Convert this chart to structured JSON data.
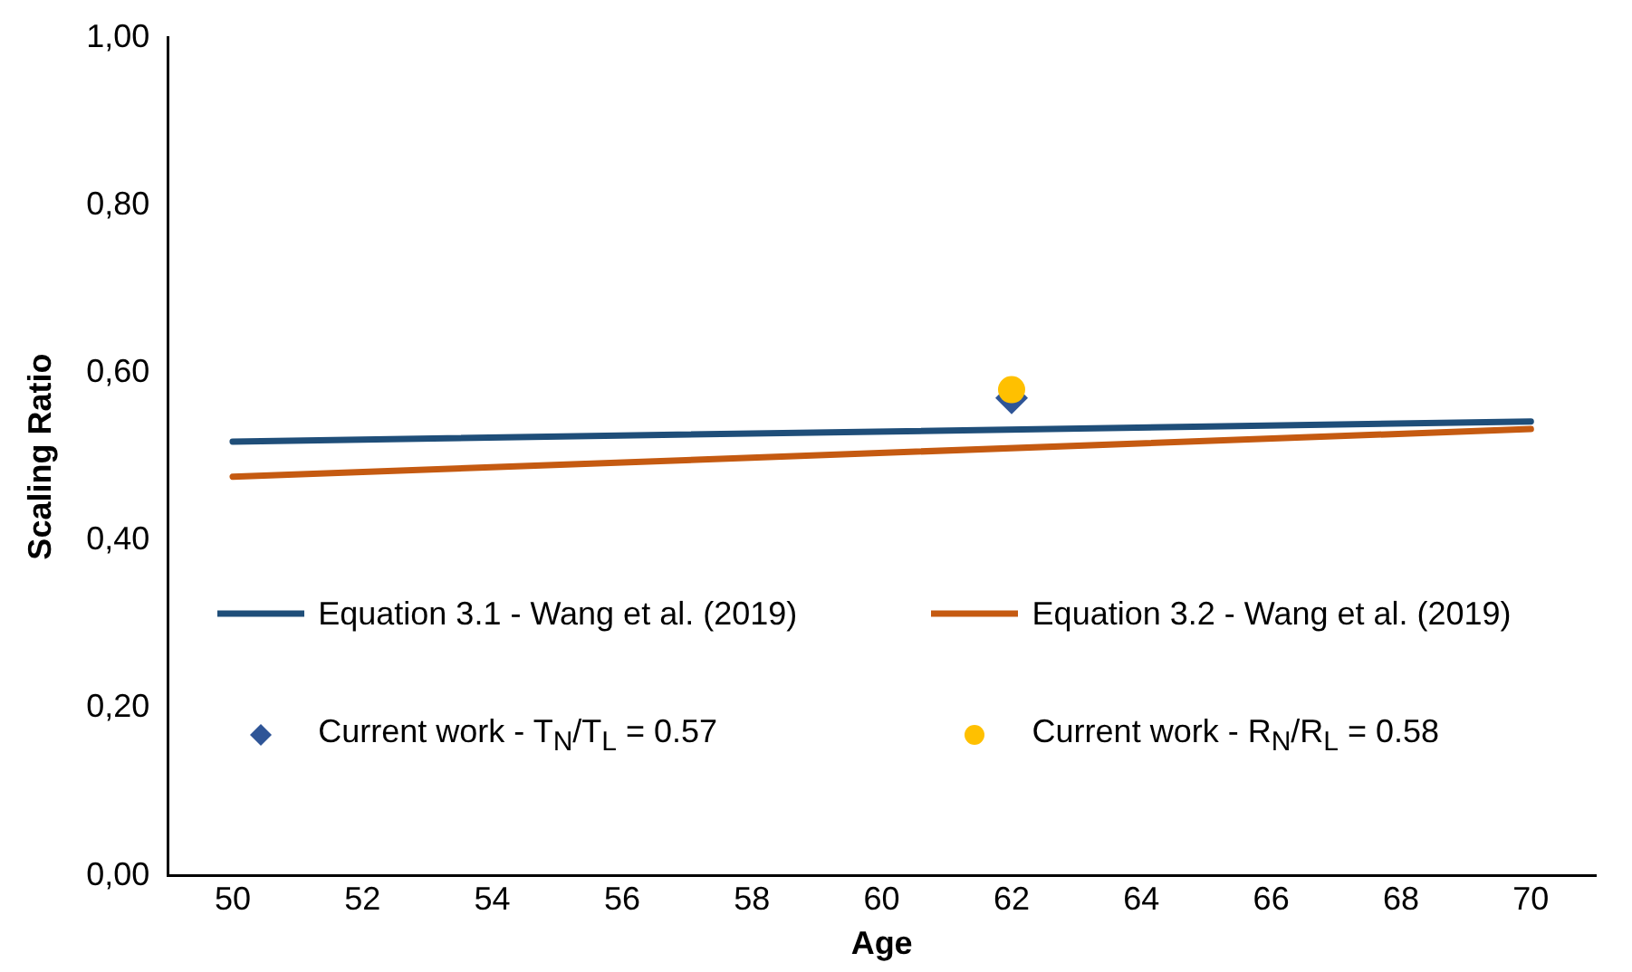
{
  "chart_data": {
    "type": "line",
    "xlabel": "Age",
    "ylabel": "Scaling Ratio",
    "xlim": [
      49,
      71
    ],
    "xticks": [
      50,
      52,
      54,
      56,
      58,
      60,
      62,
      64,
      66,
      68,
      70
    ],
    "ylim": [
      0,
      1
    ],
    "yticks": [
      {
        "value": 0,
        "label": "0,00"
      },
      {
        "value": 0.2,
        "label": "0,20"
      },
      {
        "value": 0.4,
        "label": "0,40"
      },
      {
        "value": 0.6,
        "label": "0,60"
      },
      {
        "value": 0.8,
        "label": "0,80"
      },
      {
        "value": 1,
        "label": "1,00"
      }
    ],
    "grid": false,
    "legend": "bottom",
    "series": [
      {
        "name": "Equation 3.1 - Wang et al. (2019)",
        "color": "#1f4e79",
        "x": [
          50,
          70
        ],
        "values": [
          0.518,
          0.542
        ],
        "marker": "none"
      },
      {
        "name": "Equation 3.2 - Wang et al. (2019)",
        "color": "#c55a11",
        "x": [
          50,
          70
        ],
        "values": [
          0.476,
          0.533
        ],
        "marker": "none"
      },
      {
        "name": "Current work - T$_{N}$/T$_{L}$ = 0.57",
        "type": "scatter",
        "color": "#2f5597",
        "x": [
          62
        ],
        "values": [
          0.57
        ],
        "marker": "diamond"
      },
      {
        "name": "Current work - R$_{N}$/R$_{L}$ = 0.58",
        "type": "scatter",
        "color": "#ffc000",
        "x": [
          62
        ],
        "values": [
          0.58
        ],
        "marker": "circle"
      }
    ]
  }
}
